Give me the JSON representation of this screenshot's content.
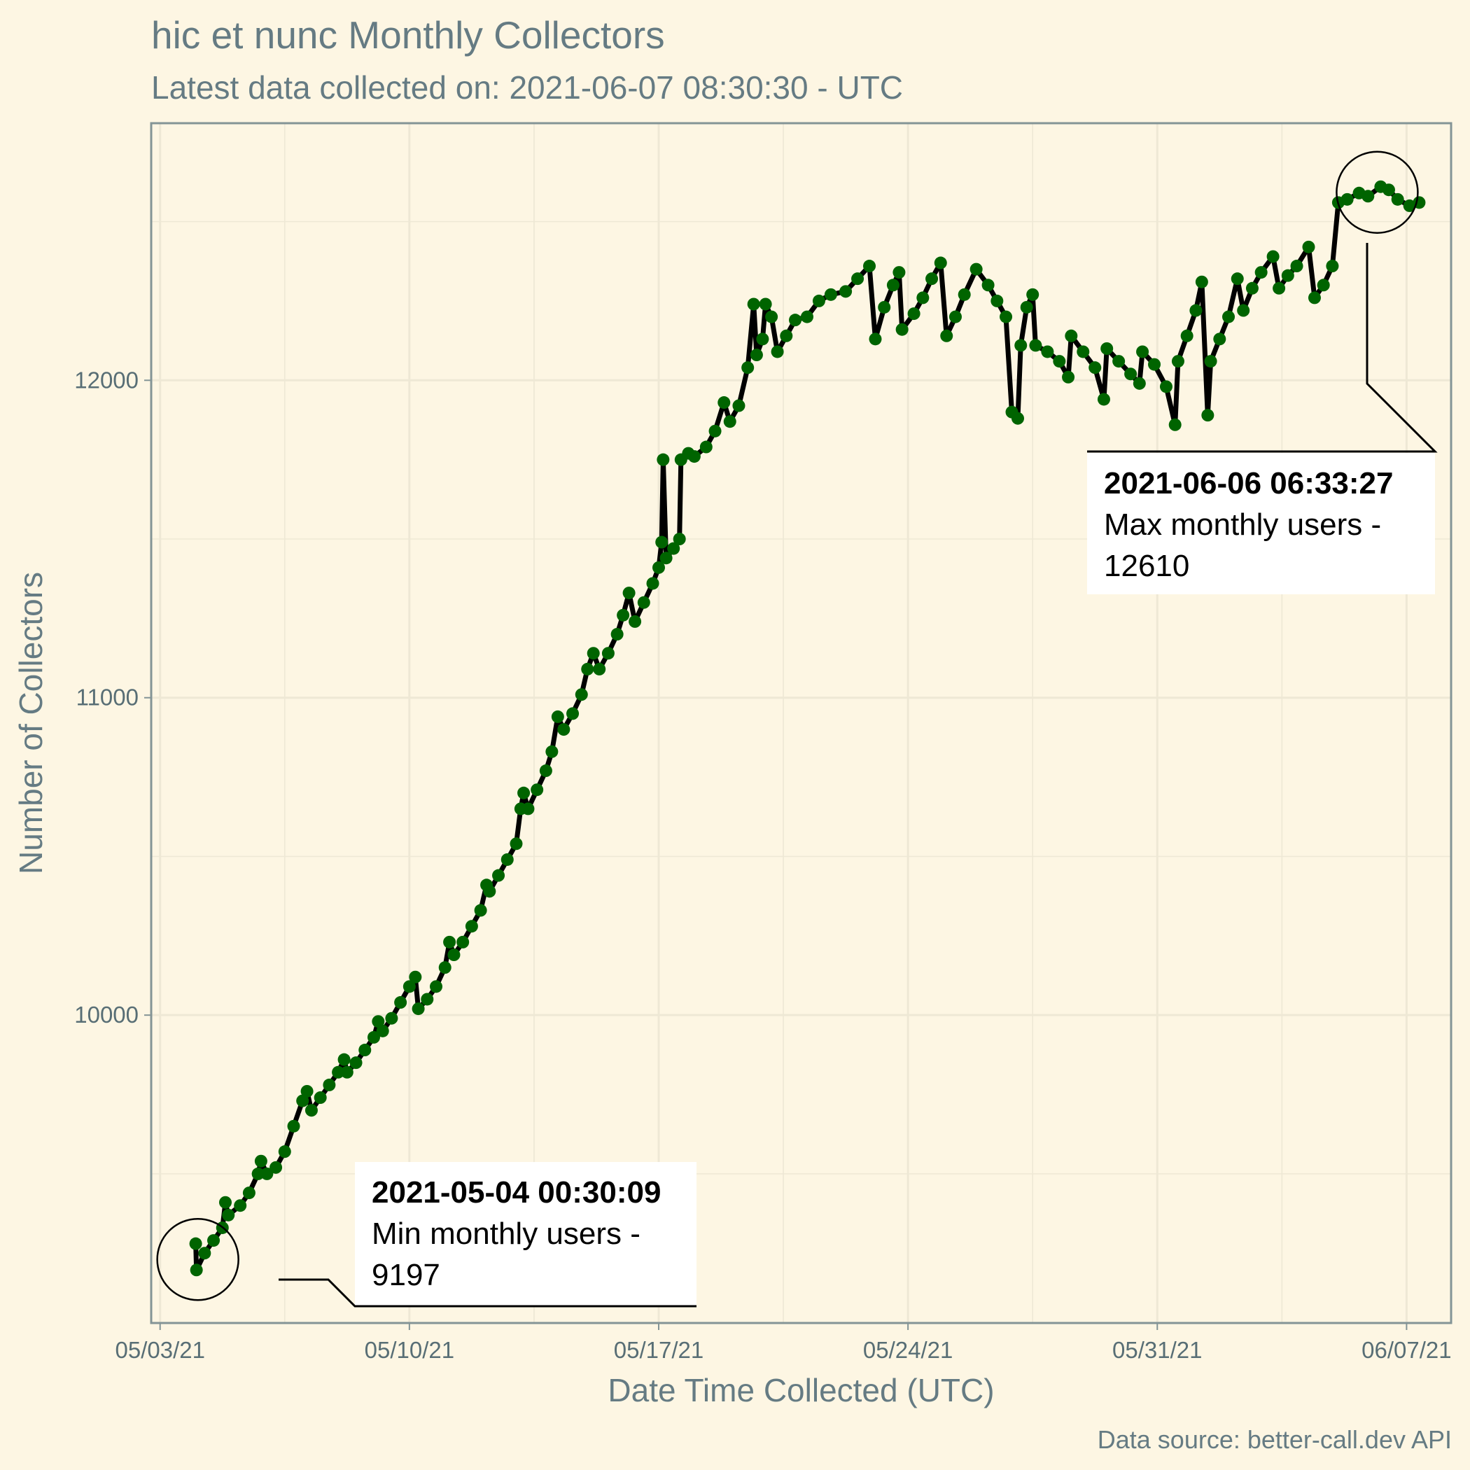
{
  "chart_data": {
    "type": "line",
    "title": "hic et nunc Monthly Collectors",
    "subtitle": "Latest data collected on: 2021-06-07 08:30:30  - UTC",
    "caption": "Data source: better-call.dev API",
    "xlabel": "Date Time Collected (UTC)",
    "ylabel": "Number of Collectors",
    "x_range": [
      "2021-05-02T18:00",
      "2021-06-08T06:00"
    ],
    "ylim": [
      9030,
      12810
    ],
    "x_ticks": [
      {
        "date": "2021-05-03",
        "label": "05/03/21"
      },
      {
        "date": "2021-05-10",
        "label": "05/10/21"
      },
      {
        "date": "2021-05-17",
        "label": "05/17/21"
      },
      {
        "date": "2021-05-24",
        "label": "05/24/21"
      },
      {
        "date": "2021-05-31",
        "label": "05/31/21"
      },
      {
        "date": "2021-06-07",
        "label": "06/07/21"
      }
    ],
    "y_ticks": [
      10000,
      11000,
      12000
    ],
    "grid": true,
    "line_color": "#000000",
    "point_color": "#006400",
    "series": [
      {
        "points": [
          [
            "2021-05-04T00:00",
            9280
          ],
          [
            "2021-05-04T00:30",
            9197
          ],
          [
            "2021-05-04T06:00",
            9250
          ],
          [
            "2021-05-04T12:00",
            9290
          ],
          [
            "2021-05-04T18:00",
            9330
          ],
          [
            "2021-05-04T20:00",
            9410
          ],
          [
            "2021-05-04T22:00",
            9370
          ],
          [
            "2021-05-05T06:00",
            9400
          ],
          [
            "2021-05-05T12:00",
            9440
          ],
          [
            "2021-05-05T18:00",
            9500
          ],
          [
            "2021-05-05T20:00",
            9540
          ],
          [
            "2021-05-06T00:00",
            9500
          ],
          [
            "2021-05-06T06:00",
            9520
          ],
          [
            "2021-05-06T12:00",
            9570
          ],
          [
            "2021-05-06T18:00",
            9650
          ],
          [
            "2021-05-07T00:00",
            9730
          ],
          [
            "2021-05-07T03:00",
            9760
          ],
          [
            "2021-05-07T06:00",
            9700
          ],
          [
            "2021-05-07T12:00",
            9740
          ],
          [
            "2021-05-07T18:00",
            9780
          ],
          [
            "2021-05-08T00:00",
            9820
          ],
          [
            "2021-05-08T04:00",
            9860
          ],
          [
            "2021-05-08T06:00",
            9820
          ],
          [
            "2021-05-08T12:00",
            9850
          ],
          [
            "2021-05-08T18:00",
            9890
          ],
          [
            "2021-05-09T00:00",
            9930
          ],
          [
            "2021-05-09T03:00",
            9980
          ],
          [
            "2021-05-09T06:00",
            9950
          ],
          [
            "2021-05-09T12:00",
            9990
          ],
          [
            "2021-05-09T18:00",
            10040
          ],
          [
            "2021-05-10T00:00",
            10090
          ],
          [
            "2021-05-10T04:00",
            10120
          ],
          [
            "2021-05-10T06:00",
            10020
          ],
          [
            "2021-05-10T12:00",
            10050
          ],
          [
            "2021-05-10T18:00",
            10090
          ],
          [
            "2021-05-11T00:00",
            10150
          ],
          [
            "2021-05-11T03:00",
            10230
          ],
          [
            "2021-05-11T06:00",
            10190
          ],
          [
            "2021-05-11T12:00",
            10230
          ],
          [
            "2021-05-11T18:00",
            10280
          ],
          [
            "2021-05-12T00:00",
            10330
          ],
          [
            "2021-05-12T04:00",
            10410
          ],
          [
            "2021-05-12T06:00",
            10390
          ],
          [
            "2021-05-12T12:00",
            10440
          ],
          [
            "2021-05-12T18:00",
            10490
          ],
          [
            "2021-05-13T00:00",
            10540
          ],
          [
            "2021-05-13T03:00",
            10650
          ],
          [
            "2021-05-13T05:00",
            10700
          ],
          [
            "2021-05-13T08:00",
            10650
          ],
          [
            "2021-05-13T14:00",
            10710
          ],
          [
            "2021-05-13T20:00",
            10770
          ],
          [
            "2021-05-14T00:00",
            10830
          ],
          [
            "2021-05-14T04:00",
            10940
          ],
          [
            "2021-05-14T08:00",
            10900
          ],
          [
            "2021-05-14T14:00",
            10950
          ],
          [
            "2021-05-14T20:00",
            11010
          ],
          [
            "2021-05-15T00:00",
            11090
          ],
          [
            "2021-05-15T04:00",
            11140
          ],
          [
            "2021-05-15T08:00",
            11090
          ],
          [
            "2021-05-15T14:00",
            11140
          ],
          [
            "2021-05-15T20:00",
            11200
          ],
          [
            "2021-05-16T00:00",
            11260
          ],
          [
            "2021-05-16T04:00",
            11330
          ],
          [
            "2021-05-16T08:00",
            11240
          ],
          [
            "2021-05-16T14:00",
            11300
          ],
          [
            "2021-05-16T20:00",
            11360
          ],
          [
            "2021-05-17T00:00",
            11410
          ],
          [
            "2021-05-17T02:00",
            11490
          ],
          [
            "2021-05-17T03:00",
            11750
          ],
          [
            "2021-05-17T05:00",
            11440
          ],
          [
            "2021-05-17T10:00",
            11470
          ],
          [
            "2021-05-17T14:00",
            11500
          ],
          [
            "2021-05-17T15:00",
            11750
          ],
          [
            "2021-05-17T20:00",
            11770
          ],
          [
            "2021-05-18T00:00",
            11760
          ],
          [
            "2021-05-18T08:00",
            11790
          ],
          [
            "2021-05-18T14:00",
            11840
          ],
          [
            "2021-05-18T20:00",
            11930
          ],
          [
            "2021-05-19T00:00",
            11870
          ],
          [
            "2021-05-19T06:00",
            11920
          ],
          [
            "2021-05-19T12:00",
            12040
          ],
          [
            "2021-05-19T16:00",
            12240
          ],
          [
            "2021-05-19T18:00",
            12080
          ],
          [
            "2021-05-19T22:00",
            12130
          ],
          [
            "2021-05-20T00:00",
            12240
          ],
          [
            "2021-05-20T04:00",
            12200
          ],
          [
            "2021-05-20T08:00",
            12090
          ],
          [
            "2021-05-20T14:00",
            12140
          ],
          [
            "2021-05-20T20:00",
            12190
          ],
          [
            "2021-05-21T04:00",
            12200
          ],
          [
            "2021-05-21T12:00",
            12250
          ],
          [
            "2021-05-21T20:00",
            12270
          ],
          [
            "2021-05-22T06:00",
            12280
          ],
          [
            "2021-05-22T14:00",
            12320
          ],
          [
            "2021-05-22T22:00",
            12360
          ],
          [
            "2021-05-23T02:00",
            12130
          ],
          [
            "2021-05-23T08:00",
            12230
          ],
          [
            "2021-05-23T14:00",
            12300
          ],
          [
            "2021-05-23T18:00",
            12340
          ],
          [
            "2021-05-23T20:00",
            12160
          ],
          [
            "2021-05-24T04:00",
            12210
          ],
          [
            "2021-05-24T10:00",
            12260
          ],
          [
            "2021-05-24T16:00",
            12320
          ],
          [
            "2021-05-24T22:00",
            12370
          ],
          [
            "2021-05-25T02:00",
            12140
          ],
          [
            "2021-05-25T08:00",
            12200
          ],
          [
            "2021-05-25T14:00",
            12270
          ],
          [
            "2021-05-25T22:00",
            12350
          ],
          [
            "2021-05-26T06:00",
            12300
          ],
          [
            "2021-05-26T12:00",
            12250
          ],
          [
            "2021-05-26T18:00",
            12200
          ],
          [
            "2021-05-26T22:00",
            11900
          ],
          [
            "2021-05-27T02:00",
            11880
          ],
          [
            "2021-05-27T04:00",
            12110
          ],
          [
            "2021-05-27T08:00",
            12230
          ],
          [
            "2021-05-27T12:00",
            12270
          ],
          [
            "2021-05-27T14:00",
            12110
          ],
          [
            "2021-05-27T22:00",
            12090
          ],
          [
            "2021-05-28T06:00",
            12060
          ],
          [
            "2021-05-28T12:00",
            12010
          ],
          [
            "2021-05-28T14:00",
            12140
          ],
          [
            "2021-05-28T22:00",
            12090
          ],
          [
            "2021-05-29T06:00",
            12040
          ],
          [
            "2021-05-29T12:00",
            11940
          ],
          [
            "2021-05-29T14:00",
            12100
          ],
          [
            "2021-05-29T22:00",
            12060
          ],
          [
            "2021-05-30T06:00",
            12020
          ],
          [
            "2021-05-30T12:00",
            11990
          ],
          [
            "2021-05-30T14:00",
            12090
          ],
          [
            "2021-05-30T22:00",
            12050
          ],
          [
            "2021-05-31T06:00",
            11980
          ],
          [
            "2021-05-31T12:00",
            11860
          ],
          [
            "2021-05-31T14:00",
            12060
          ],
          [
            "2021-05-31T20:00",
            12140
          ],
          [
            "2021-06-01T02:00",
            12220
          ],
          [
            "2021-06-01T06:00",
            12310
          ],
          [
            "2021-06-01T10:00",
            11890
          ],
          [
            "2021-06-01T12:00",
            12060
          ],
          [
            "2021-06-01T18:00",
            12130
          ],
          [
            "2021-06-02T00:00",
            12200
          ],
          [
            "2021-06-02T06:00",
            12320
          ],
          [
            "2021-06-02T10:00",
            12220
          ],
          [
            "2021-06-02T16:00",
            12290
          ],
          [
            "2021-06-02T22:00",
            12340
          ],
          [
            "2021-06-03T06:00",
            12390
          ],
          [
            "2021-06-03T10:00",
            12290
          ],
          [
            "2021-06-03T16:00",
            12330
          ],
          [
            "2021-06-03T22:00",
            12360
          ],
          [
            "2021-06-04T06:00",
            12420
          ],
          [
            "2021-06-04T10:00",
            12260
          ],
          [
            "2021-06-04T16:00",
            12300
          ],
          [
            "2021-06-04T22:00",
            12360
          ],
          [
            "2021-06-05T02:00",
            12560
          ],
          [
            "2021-06-05T08:00",
            12570
          ],
          [
            "2021-06-05T16:00",
            12590
          ],
          [
            "2021-06-05T22:00",
            12580
          ],
          [
            "2021-06-06T06:33",
            12610
          ],
          [
            "2021-06-06T12:00",
            12600
          ],
          [
            "2021-06-06T18:00",
            12570
          ],
          [
            "2021-06-07T02:00",
            12550
          ],
          [
            "2021-06-07T08:30",
            12560
          ]
        ]
      }
    ],
    "annotations": [
      {
        "date": "2021-05-04T00:30",
        "value": 9197,
        "bold": "2021-05-04 00:30:09",
        "line1": "Min monthly users -",
        "line2": "9197"
      },
      {
        "date": "2021-06-06T06:33",
        "value": 12610,
        "bold": "2021-06-06 06:33:27",
        "line1": "Max monthly users -",
        "line2": "12610"
      }
    ]
  }
}
